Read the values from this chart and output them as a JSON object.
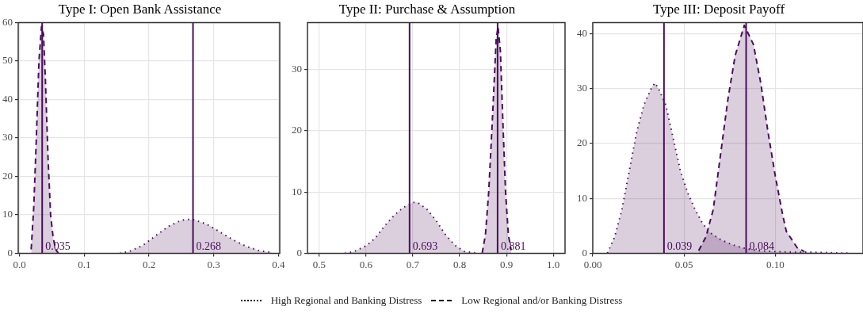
{
  "chart_data": [
    {
      "type": "area",
      "title": "Type I: Open Bank Assistance",
      "xlim": [
        -0.002,
        0.402
      ],
      "xticks": [
        {
          "value": 0,
          "label": "0.0"
        },
        0.1,
        0.2,
        0.3,
        0.4
      ],
      "ylim": [
        0,
        60
      ],
      "yticks": [
        0,
        10,
        20,
        30,
        40,
        50,
        60
      ],
      "grid": true,
      "legend": "bottom",
      "marker": "none",
      "series": [
        {
          "name": "High Regional and Banking Distress",
          "color": "#4a0e5c",
          "line_style": "dotted",
          "x": [
            0.155,
            0.17,
            0.19,
            0.21,
            0.23,
            0.25,
            0.26,
            0.27,
            0.29,
            0.31,
            0.33,
            0.35,
            0.37,
            0.39
          ],
          "values": [
            0,
            0.5,
            2,
            4.5,
            7,
            8.6,
            8.8,
            8.7,
            7.5,
            5.5,
            3.5,
            1.8,
            0.7,
            0.2
          ]
        },
        {
          "name": "Low Regional and/or Banking Distress",
          "color": "#4a0e5c",
          "line_style": "dashed",
          "x": [
            0.018,
            0.022,
            0.026,
            0.03,
            0.034,
            0.037,
            0.04,
            0.044,
            0.048,
            0.052,
            0.056,
            0.06
          ],
          "values": [
            1,
            12,
            30,
            50,
            59,
            57,
            45,
            25,
            10,
            4,
            1,
            0
          ]
        }
      ],
      "ref_lines": [
        {
          "axis": "x",
          "value": 0.035,
          "label": "0.035",
          "color": "#4a0e5c"
        },
        {
          "axis": "x",
          "value": 0.268,
          "label": "0.268",
          "color": "#4a0e5c"
        }
      ]
    },
    {
      "type": "area",
      "title": "Type II: Purchase & Assumption",
      "xlim": [
        0.475,
        1.025
      ],
      "xticks": [
        0.5,
        0.6,
        0.7,
        0.8,
        0.9,
        {
          "value": 1,
          "label": "1.0"
        }
      ],
      "ylim": [
        0,
        37.7
      ],
      "yticks": [
        0,
        10,
        20,
        30
      ],
      "grid": true,
      "marker": "none",
      "series": [
        {
          "color": "#4a0e5c",
          "line_style": "dotted",
          "x": [
            0.555,
            0.575,
            0.6,
            0.62,
            0.64,
            0.66,
            0.68,
            0.7,
            0.71,
            0.73,
            0.75,
            0.77,
            0.79,
            0.81,
            0.84
          ],
          "values": [
            0,
            0.3,
            1.2,
            2.5,
            4.5,
            6.2,
            7.5,
            8.3,
            8.3,
            7.2,
            5.3,
            3,
            1.3,
            0.3,
            0
          ]
        },
        {
          "color": "#4a0e5c",
          "line_style": "dashed",
          "x": [
            0.848,
            0.855,
            0.862,
            0.87,
            0.878,
            0.882,
            0.887,
            0.892,
            0.898,
            0.904,
            0.91
          ],
          "values": [
            0,
            3,
            10,
            22,
            35,
            37,
            33,
            22,
            10,
            3,
            0.5
          ]
        }
      ],
      "ref_lines": [
        {
          "axis": "x",
          "value": 0.693,
          "label": "0.693",
          "color": "#4a0e5c"
        },
        {
          "axis": "x",
          "value": 0.881,
          "label": "0.881",
          "color": "#4a0e5c"
        }
      ]
    },
    {
      "type": "area",
      "title": "Type III: Deposit Payoff",
      "xlim": [
        0,
        0.148
      ],
      "xticks": [
        {
          "value": 0,
          "label": "0.00"
        },
        0.05,
        {
          "value": 0.1,
          "label": "0.10"
        }
      ],
      "ylim": [
        0,
        42
      ],
      "yticks": [
        0,
        10,
        20,
        30,
        40
      ],
      "grid": true,
      "marker": "none",
      "series": [
        {
          "color": "#4a0e5c",
          "line_style": "dotted",
          "x": [
            0.008,
            0.012,
            0.016,
            0.02,
            0.024,
            0.028,
            0.032,
            0.034,
            0.036,
            0.04,
            0.044,
            0.048,
            0.052,
            0.056,
            0.06,
            0.064,
            0.07,
            0.076,
            0.082,
            0.09,
            0.1,
            0.11,
            0.12,
            0.13,
            0.14
          ],
          "values": [
            0,
            3,
            8,
            15,
            22,
            27,
            30,
            31,
            30,
            27,
            21,
            15,
            11,
            8,
            5.5,
            3.8,
            2.5,
            1.6,
            1,
            0.5,
            0.3,
            0.2,
            0.2,
            0.1,
            0
          ]
        },
        {
          "color": "#4a0e5c",
          "line_style": "dashed",
          "x": [
            0.058,
            0.062,
            0.066,
            0.07,
            0.074,
            0.078,
            0.083,
            0.088,
            0.092,
            0.096,
            0.1,
            0.104,
            0.106,
            0.108,
            0.112,
            0.116
          ],
          "values": [
            0.5,
            3,
            8,
            18,
            28,
            36,
            41.5,
            38,
            31,
            22,
            14,
            7,
            4,
            3,
            1,
            0.3
          ]
        }
      ],
      "ref_lines": [
        {
          "axis": "x",
          "value": 0.039,
          "label": "0.039",
          "color": "#4a0e5c"
        },
        {
          "axis": "x",
          "value": 0.084,
          "label": "0.084",
          "color": "#4a0e5c"
        }
      ]
    }
  ]
}
